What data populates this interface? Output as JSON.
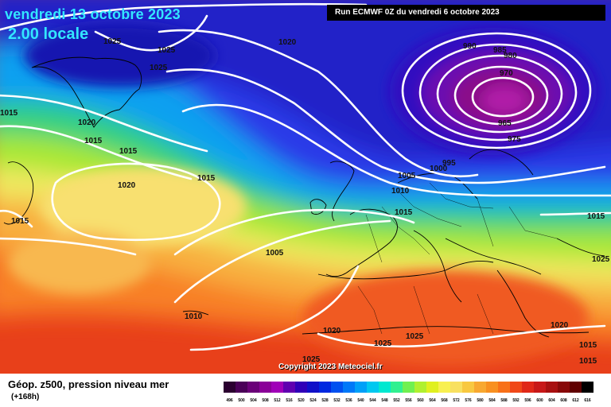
{
  "header": {
    "date": "vendredi 13 octobre 2023",
    "time": "2.00 locale",
    "run": "Run ECMWF 0Z du vendredi 6 octobre 2023"
  },
  "copyright": "Copyright 2023 Meteociel.fr",
  "footer": {
    "title": "Géop. z500, pression niveau mer",
    "subtitle": "(+168h)"
  },
  "colors": {
    "background_low": "#3b2bd0",
    "background_high": "#f0401a"
  },
  "scale": {
    "labels": [
      "496",
      "500",
      "504",
      "508",
      "512",
      "516",
      "520",
      "524",
      "528",
      "532",
      "536",
      "540",
      "544",
      "548",
      "552",
      "556",
      "560",
      "564",
      "568",
      "572",
      "576",
      "580",
      "584",
      "588",
      "592",
      "596",
      "600",
      "604",
      "608",
      "612",
      "616"
    ],
    "colors": [
      "#2b0030",
      "#4a0058",
      "#6a0078",
      "#8a0098",
      "#a000b8",
      "#6000b0",
      "#3000b8",
      "#1010c8",
      "#0028e0",
      "#0050f0",
      "#0078f8",
      "#00a0f8",
      "#00c8f0",
      "#00e8d0",
      "#30f090",
      "#70f050",
      "#b0f030",
      "#e0f020",
      "#f8f050",
      "#f8e060",
      "#f8c840",
      "#f8a830",
      "#f89020",
      "#f87018",
      "#f04818",
      "#e02818",
      "#c81818",
      "#a81010",
      "#880808",
      "#600000",
      "#000000"
    ]
  },
  "pressure_labels": [
    {
      "text": "1025"
    },
    {
      "text": "1025"
    },
    {
      "text": "1025"
    },
    {
      "text": "1020"
    },
    {
      "text": "1020"
    },
    {
      "text": "1015"
    },
    {
      "text": "1015"
    },
    {
      "text": "1015"
    },
    {
      "text": "1020"
    },
    {
      "text": "1015"
    },
    {
      "text": "1015"
    },
    {
      "text": "1005"
    },
    {
      "text": "1010"
    },
    {
      "text": "1020"
    },
    {
      "text": "1025"
    },
    {
      "text": "1025"
    },
    {
      "text": "1025"
    },
    {
      "text": "990"
    },
    {
      "text": "985"
    },
    {
      "text": "980"
    },
    {
      "text": "970"
    },
    {
      "text": "965"
    },
    {
      "text": "975"
    },
    {
      "text": "995"
    },
    {
      "text": "1000"
    },
    {
      "text": "1005"
    },
    {
      "text": "1010"
    },
    {
      "text": "1015"
    },
    {
      "text": "1015"
    },
    {
      "text": "1025"
    },
    {
      "text": "1020"
    },
    {
      "text": "1015"
    },
    {
      "text": "1015"
    },
    {
      "text": "1020"
    }
  ]
}
